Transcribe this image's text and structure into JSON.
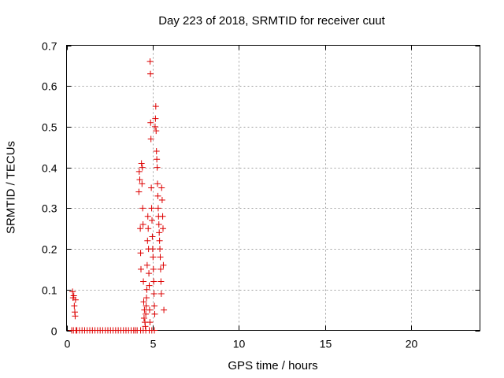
{
  "chart_data": {
    "type": "scatter",
    "title": "Day 223 of 2018, SRMTID for receiver cuut",
    "xlabel": "GPS time / hours",
    "ylabel": "SRMTID / TECUs",
    "xlim": [
      0,
      24
    ],
    "ylim": [
      0,
      0.7
    ],
    "xticks": [
      0,
      5,
      10,
      15,
      20
    ],
    "yticks": [
      0,
      0.1,
      0.2,
      0.3,
      0.4,
      0.5,
      0.6,
      0.7
    ],
    "grid": true,
    "marker": "+",
    "marker_color": "#dd0000",
    "series": [
      {
        "name": "SRMTID",
        "points": [
          [
            0.35,
            0.095
          ],
          [
            0.38,
            0.08
          ],
          [
            0.42,
            0.085
          ],
          [
            0.45,
            0.06
          ],
          [
            0.48,
            0.045
          ],
          [
            0.5,
            0.035
          ],
          [
            0.52,
            0.075
          ],
          [
            0.55,
            0.0
          ],
          [
            0.3,
            0.0
          ],
          [
            0.4,
            0.0
          ],
          [
            0.6,
            0.0
          ],
          [
            0.75,
            0.0
          ],
          [
            0.9,
            0.0
          ],
          [
            1.05,
            0.0
          ],
          [
            1.2,
            0.0
          ],
          [
            1.35,
            0.0
          ],
          [
            1.5,
            0.0
          ],
          [
            1.65,
            0.0
          ],
          [
            1.8,
            0.0
          ],
          [
            1.95,
            0.0
          ],
          [
            2.1,
            0.0
          ],
          [
            2.25,
            0.0
          ],
          [
            2.4,
            0.0
          ],
          [
            2.55,
            0.0
          ],
          [
            2.7,
            0.0
          ],
          [
            2.85,
            0.0
          ],
          [
            3.0,
            0.0
          ],
          [
            3.15,
            0.0
          ],
          [
            3.3,
            0.0
          ],
          [
            3.45,
            0.0
          ],
          [
            3.6,
            0.0
          ],
          [
            3.75,
            0.0
          ],
          [
            3.9,
            0.0
          ],
          [
            4.0,
            0.0
          ],
          [
            4.1,
            0.0
          ],
          [
            4.2,
            0.34
          ],
          [
            4.22,
            0.39
          ],
          [
            4.25,
            0.37
          ],
          [
            4.28,
            0.25
          ],
          [
            4.3,
            0.19
          ],
          [
            4.32,
            0.15
          ],
          [
            4.35,
            0.41
          ],
          [
            4.38,
            0.36
          ],
          [
            4.4,
            0.4
          ],
          [
            4.42,
            0.3
          ],
          [
            4.44,
            0.26
          ],
          [
            4.46,
            0.12
          ],
          [
            4.48,
            0.07
          ],
          [
            4.5,
            0.03
          ],
          [
            4.52,
            0.05
          ],
          [
            4.55,
            0.02
          ],
          [
            4.57,
            0.01
          ],
          [
            4.6,
            0.04
          ],
          [
            4.62,
            0.06
          ],
          [
            4.64,
            0.08
          ],
          [
            4.66,
            0.1
          ],
          [
            4.68,
            0.16
          ],
          [
            4.7,
            0.22
          ],
          [
            4.72,
            0.28
          ],
          [
            4.74,
            0.25
          ],
          [
            4.76,
            0.2
          ],
          [
            4.78,
            0.14
          ],
          [
            4.8,
            0.11
          ],
          [
            4.82,
            0.05
          ],
          [
            4.84,
            0.02
          ],
          [
            4.85,
            0.66
          ],
          [
            4.87,
            0.63
          ],
          [
            4.88,
            0.51
          ],
          [
            4.9,
            0.47
          ],
          [
            4.92,
            0.35
          ],
          [
            4.94,
            0.3
          ],
          [
            4.96,
            0.27
          ],
          [
            4.98,
            0.23
          ],
          [
            5.0,
            0.2
          ],
          [
            5.02,
            0.18
          ],
          [
            5.04,
            0.15
          ],
          [
            5.06,
            0.12
          ],
          [
            5.08,
            0.09
          ],
          [
            5.1,
            0.06
          ],
          [
            5.12,
            0.04
          ],
          [
            5.14,
            0.5
          ],
          [
            5.16,
            0.52
          ],
          [
            5.18,
            0.55
          ],
          [
            5.2,
            0.49
          ],
          [
            5.22,
            0.44
          ],
          [
            5.24,
            0.42
          ],
          [
            5.26,
            0.4
          ],
          [
            5.28,
            0.36
          ],
          [
            5.3,
            0.33
          ],
          [
            5.32,
            0.3
          ],
          [
            5.34,
            0.28
          ],
          [
            5.36,
            0.26
          ],
          [
            5.38,
            0.24
          ],
          [
            5.4,
            0.22
          ],
          [
            5.42,
            0.2
          ],
          [
            5.44,
            0.18
          ],
          [
            5.46,
            0.15
          ],
          [
            5.48,
            0.12
          ],
          [
            5.5,
            0.09
          ],
          [
            5.52,
            0.35
          ],
          [
            5.55,
            0.32
          ],
          [
            5.58,
            0.28
          ],
          [
            5.6,
            0.25
          ],
          [
            5.62,
            0.16
          ],
          [
            5.65,
            0.05
          ],
          [
            4.3,
            0.0
          ],
          [
            4.45,
            0.0
          ],
          [
            4.6,
            0.0
          ],
          [
            4.8,
            0.0
          ],
          [
            4.95,
            0.0
          ],
          [
            5.1,
            0.0
          ]
        ]
      }
    ]
  }
}
